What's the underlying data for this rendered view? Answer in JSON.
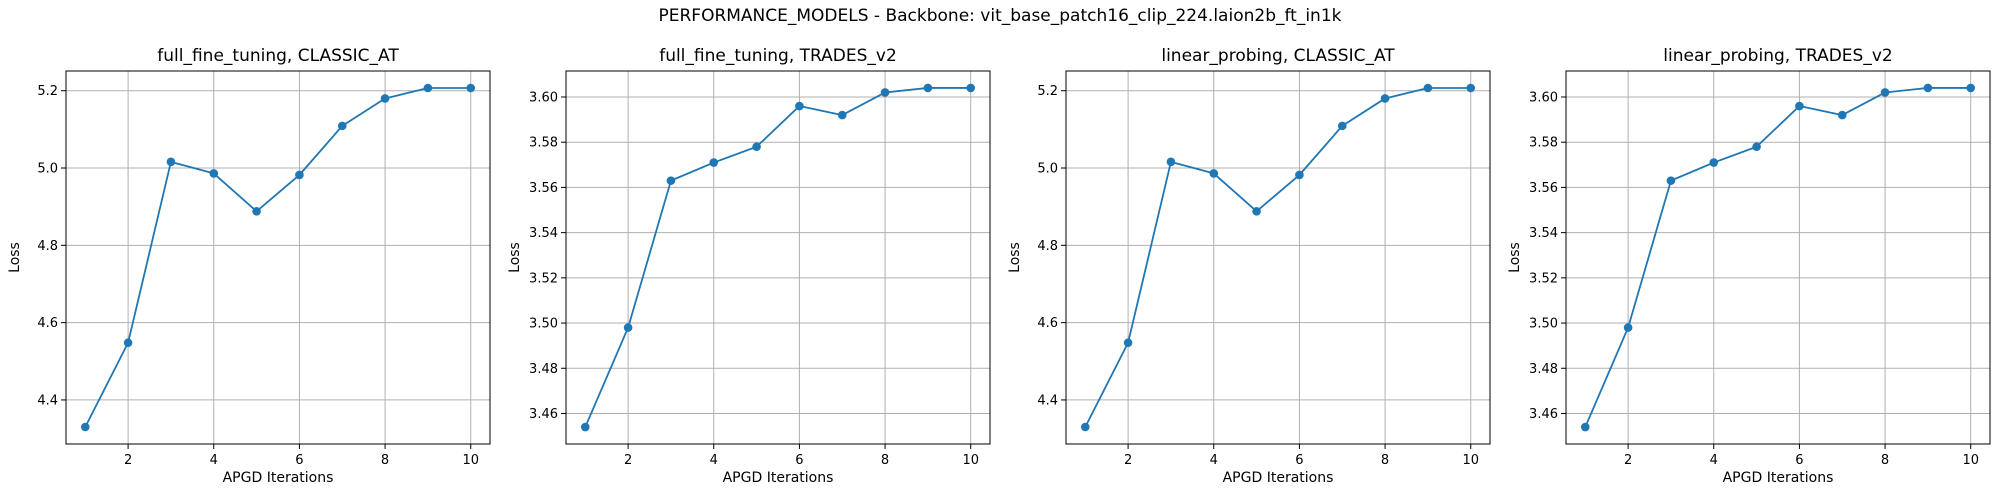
{
  "figure": {
    "suptitle": "PERFORMANCE_MODELS - Backbone: vit_base_patch16_clip_224.laion2b_ft_in1k"
  },
  "colors": {
    "line": "#1f77b4",
    "grid": "#b0b0b0",
    "axis": "#000000"
  },
  "chart_data": [
    {
      "type": "line",
      "title": "full_fine_tuning, CLASSIC_AT",
      "xlabel": "APGD Iterations",
      "ylabel": "Loss",
      "x": [
        1,
        2,
        3,
        4,
        5,
        6,
        7,
        8,
        9,
        10
      ],
      "series": [
        {
          "values": [
            4.33,
            4.548,
            5.016,
            4.986,
            4.888,
            4.982,
            5.109,
            5.18,
            5.207,
            5.207
          ]
        }
      ],
      "xlim": [
        0.55,
        10.45
      ],
      "ylim": [
        4.286,
        5.251
      ],
      "xticks": [
        2,
        4,
        6,
        8,
        10
      ],
      "yticks": [
        4.4,
        4.6,
        4.8,
        5.0,
        5.2
      ],
      "yticklabels": [
        "4.4",
        "4.6",
        "4.8",
        "5.0",
        "5.2"
      ],
      "grid": true,
      "marker": "circle"
    },
    {
      "type": "line",
      "title": "full_fine_tuning, TRADES_v2",
      "xlabel": "APGD Iterations",
      "ylabel": "Loss",
      "x": [
        1,
        2,
        3,
        4,
        5,
        6,
        7,
        8,
        9,
        10
      ],
      "series": [
        {
          "values": [
            3.454,
            3.498,
            3.563,
            3.571,
            3.578,
            3.596,
            3.592,
            3.602,
            3.604,
            3.604
          ]
        }
      ],
      "xlim": [
        0.55,
        10.45
      ],
      "ylim": [
        3.4465,
        3.6115
      ],
      "xticks": [
        2,
        4,
        6,
        8,
        10
      ],
      "yticks": [
        3.46,
        3.48,
        3.5,
        3.52,
        3.54,
        3.56,
        3.58,
        3.6
      ],
      "yticklabels": [
        "3.46",
        "3.48",
        "3.50",
        "3.52",
        "3.54",
        "3.56",
        "3.58",
        "3.60"
      ],
      "grid": true,
      "marker": "circle"
    },
    {
      "type": "line",
      "title": "linear_probing, CLASSIC_AT",
      "xlabel": "APGD Iterations",
      "ylabel": "Loss",
      "x": [
        1,
        2,
        3,
        4,
        5,
        6,
        7,
        8,
        9,
        10
      ],
      "series": [
        {
          "values": [
            4.33,
            4.548,
            5.016,
            4.986,
            4.888,
            4.982,
            5.109,
            5.18,
            5.207,
            5.207
          ]
        }
      ],
      "xlim": [
        0.55,
        10.45
      ],
      "ylim": [
        4.286,
        5.251
      ],
      "xticks": [
        2,
        4,
        6,
        8,
        10
      ],
      "yticks": [
        4.4,
        4.6,
        4.8,
        5.0,
        5.2
      ],
      "yticklabels": [
        "4.4",
        "4.6",
        "4.8",
        "5.0",
        "5.2"
      ],
      "grid": true,
      "marker": "circle"
    },
    {
      "type": "line",
      "title": "linear_probing, TRADES_v2",
      "xlabel": "APGD Iterations",
      "ylabel": "Loss",
      "x": [
        1,
        2,
        3,
        4,
        5,
        6,
        7,
        8,
        9,
        10
      ],
      "series": [
        {
          "values": [
            3.454,
            3.498,
            3.563,
            3.571,
            3.578,
            3.596,
            3.592,
            3.602,
            3.604,
            3.604
          ]
        }
      ],
      "xlim": [
        0.55,
        10.45
      ],
      "ylim": [
        3.4465,
        3.6115
      ],
      "xticks": [
        2,
        4,
        6,
        8,
        10
      ],
      "yticks": [
        3.46,
        3.48,
        3.5,
        3.52,
        3.54,
        3.56,
        3.58,
        3.6
      ],
      "yticklabels": [
        "3.46",
        "3.48",
        "3.50",
        "3.52",
        "3.54",
        "3.56",
        "3.58",
        "3.60"
      ],
      "grid": true,
      "marker": "circle"
    }
  ]
}
